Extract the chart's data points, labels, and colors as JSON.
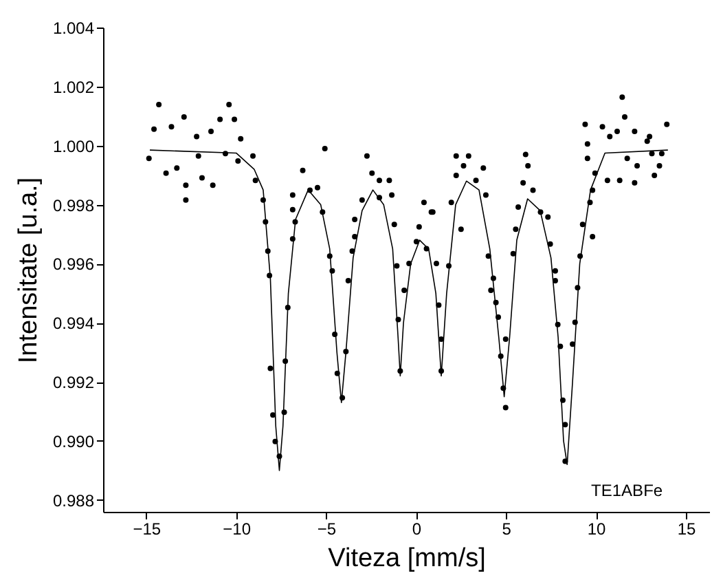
{
  "chart_data": {
    "type": "scatter",
    "xlabel": "Viteza [mm/s]",
    "ylabel": "Intensitate [u.a.]",
    "xlim": [
      -17.4,
      16.3
    ],
    "ylim": [
      0.9876,
      1.004
    ],
    "xticks": [
      -15,
      -10,
      -5,
      0,
      5,
      10,
      15
    ],
    "yticks": [
      {
        "value": 0.988,
        "label": "0.988"
      },
      {
        "value": 0.99,
        "label": "0.990"
      },
      {
        "value": 0.992,
        "label": "0.992"
      },
      {
        "value": 0.994,
        "label": "0.994"
      },
      {
        "value": 0.996,
        "label": "0.996"
      },
      {
        "value": 0.998,
        "label": "0.998"
      },
      {
        "value": 1.0,
        "label": "1.000"
      },
      {
        "value": 1.002,
        "label": "1.002"
      },
      {
        "value": 1.004,
        "label": "1.004"
      }
    ],
    "grid": false,
    "annotations": [
      "TE1ABFe"
    ],
    "series": [
      {
        "marker": "circle",
        "color": "#000000",
        "x": [
          -14.3,
          -14.57,
          -13.6,
          -12.9,
          -14.85,
          -13.9,
          -13.3,
          -12.8,
          -12.8,
          -12.1,
          -11.9,
          -11.3,
          -12.2,
          -11.4,
          -10.9,
          -10.4,
          -10.1,
          -9.75,
          -10.6,
          -9.9,
          -9.07,
          -8.93,
          -8.5,
          -8.37,
          -8.24,
          -8.15,
          -8.1,
          -7.96,
          -7.83,
          -7.6,
          -7.33,
          -7.27,
          -7.13,
          -6.86,
          -6.72,
          -6.86,
          -6.86,
          -6.3,
          -5.9,
          -5.48,
          -5.07,
          -5.2,
          -4.8,
          -4.66,
          -4.52,
          -4.38,
          -4.1,
          -3.9,
          -3.77,
          -3.55,
          -3.41,
          -3.41,
          -3.0,
          -2.73,
          -2.45,
          -2.04,
          -1.49,
          -2.04,
          -1.35,
          -1.21,
          -1.07,
          -0.99,
          -0.88,
          -0.66,
          -0.39,
          0.02,
          0.44,
          0.17,
          0.93,
          0.85,
          0.58,
          1.13,
          1.26,
          1.4,
          1.4,
          1.82,
          1.96,
          2.23,
          2.23,
          2.64,
          2.5,
          2.92,
          3.33,
          3.74,
          3.88,
          4.02,
          4.3,
          4.16,
          4.44,
          4.57,
          4.71,
          4.98,
          4.85,
          4.98,
          5.4,
          5.54,
          5.68,
          5.95,
          6.22,
          6.09,
          6.5,
          6.92,
          7.33,
          7.46,
          7.74,
          7.74,
          7.88,
          8.02,
          8.16,
          8.29,
          8.29,
          8.7,
          8.84,
          8.98,
          9.12,
          9.26,
          9.67,
          9.81,
          9.81,
          9.95,
          9.53,
          9.53,
          9.4,
          10.36,
          10.64,
          10.77,
          11.18,
          11.46,
          11.6,
          11.32,
          11.74,
          12.15,
          12.29,
          12.15,
          12.85,
          12.98,
          13.11,
          13.53,
          13.25,
          13.66,
          13.94
        ],
        "values": [
          1.00139,
          1.00056,
          1.00064,
          1.00097,
          0.99957,
          0.99907,
          0.99924,
          0.99866,
          0.99816,
          0.99965,
          0.99891,
          0.99866,
          1.00031,
          1.00048,
          1.00089,
          1.00139,
          1.00089,
          1.00023,
          0.99973,
          0.99948,
          0.99965,
          0.99882,
          0.99816,
          0.99742,
          0.99643,
          0.9956,
          0.99246,
          0.99088,
          0.98998,
          0.98948,
          0.99097,
          0.9927,
          0.99452,
          0.99684,
          0.99742,
          0.99783,
          0.99833,
          0.99916,
          0.99849,
          0.99858,
          0.9999,
          0.99775,
          0.99626,
          0.99576,
          0.99361,
          0.99229,
          0.99146,
          0.99303,
          0.99543,
          0.99643,
          0.99692,
          0.9975,
          0.99816,
          0.99965,
          0.99907,
          0.99882,
          0.99882,
          0.99824,
          0.99833,
          0.99733,
          0.99593,
          0.99411,
          0.99237,
          0.9951,
          0.99601,
          0.99675,
          0.99808,
          0.99725,
          0.99775,
          0.99775,
          0.99651,
          0.99601,
          0.9946,
          0.99345,
          0.99237,
          0.99593,
          0.99808,
          0.99899,
          0.99965,
          0.99932,
          0.99717,
          0.99965,
          0.99882,
          0.99924,
          0.99833,
          0.99626,
          0.99551,
          0.9951,
          0.99469,
          0.99419,
          0.99287,
          0.99345,
          0.99179,
          0.99113,
          0.99634,
          0.99717,
          0.99792,
          0.99874,
          0.99932,
          0.9997,
          0.99849,
          0.99775,
          0.99758,
          0.99667,
          0.99576,
          0.99543,
          0.99394,
          0.9932,
          0.99138,
          0.99055,
          0.98931,
          0.99328,
          0.99402,
          0.99519,
          0.99626,
          0.99733,
          0.99808,
          0.99692,
          0.99849,
          0.99907,
          0.99957,
          1.00006,
          1.00072,
          1.00064,
          0.99882,
          1.00031,
          1.00048,
          1.00164,
          1.00097,
          0.99882,
          0.99957,
          1.00048,
          0.99932,
          0.99874,
          1.00015,
          1.00031,
          0.99973,
          0.99932,
          0.99899,
          0.99973,
          1.00072
        ]
      },
      {
        "type": "line",
        "line_style": "solid",
        "color": "#000000",
        "x": [
          -14.8,
          -10,
          -9,
          -8.5,
          -8.1,
          -7.8,
          -7.6,
          -7.4,
          -7.1,
          -6.7,
          -6,
          -5.3,
          -4.8,
          -4.4,
          -4.15,
          -3.9,
          -3.5,
          -3,
          -2.4,
          -1.8,
          -1.3,
          -1.0,
          -0.88,
          -0.7,
          -0.3,
          0.2,
          0.7,
          1.1,
          1.4,
          1.7,
          2.2,
          2.8,
          3.5,
          4.1,
          4.6,
          4.9,
          5.2,
          5.6,
          6.2,
          6.9,
          7.5,
          7.9,
          8.2,
          8.4,
          8.7,
          9.1,
          9.7,
          10.5,
          14
        ],
        "values": [
          0.99985,
          0.99975,
          0.9992,
          0.9985,
          0.9955,
          0.9905,
          0.989,
          0.9905,
          0.995,
          0.9975,
          0.9985,
          0.998,
          0.9965,
          0.993,
          0.9913,
          0.993,
          0.9962,
          0.9978,
          0.9985,
          0.998,
          0.9965,
          0.9935,
          0.9922,
          0.994,
          0.996,
          0.9968,
          0.9965,
          0.995,
          0.9922,
          0.995,
          0.998,
          0.9988,
          0.9985,
          0.9965,
          0.9935,
          0.9915,
          0.9935,
          0.9968,
          0.9982,
          0.9978,
          0.9962,
          0.9935,
          0.99,
          0.9892,
          0.992,
          0.996,
          0.9985,
          0.99975,
          0.99985
        ]
      }
    ]
  }
}
